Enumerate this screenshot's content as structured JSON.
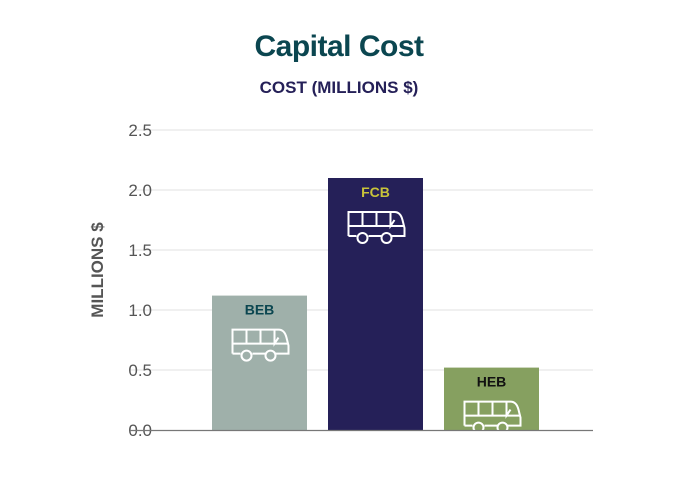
{
  "chart_data": {
    "type": "bar",
    "title": "Capital Cost",
    "subtitle": "COST (MILLIONS $)",
    "xlabel": "",
    "ylabel": "MILLIONS $",
    "ylim": [
      0,
      2.5
    ],
    "yticks": [
      "0.0",
      "0.5",
      "1.0",
      "1.5",
      "2.0",
      "2.5"
    ],
    "grid": true,
    "categories": [
      "BEB",
      "FCB",
      "HEB"
    ],
    "values": [
      1.12,
      2.1,
      0.52
    ],
    "colors": [
      "#9fb0aa",
      "#252058",
      "#86a060"
    ],
    "label_colors": [
      "#0b4650",
      "#c9c43a",
      "#111111"
    ],
    "icon": "bus-icon"
  }
}
